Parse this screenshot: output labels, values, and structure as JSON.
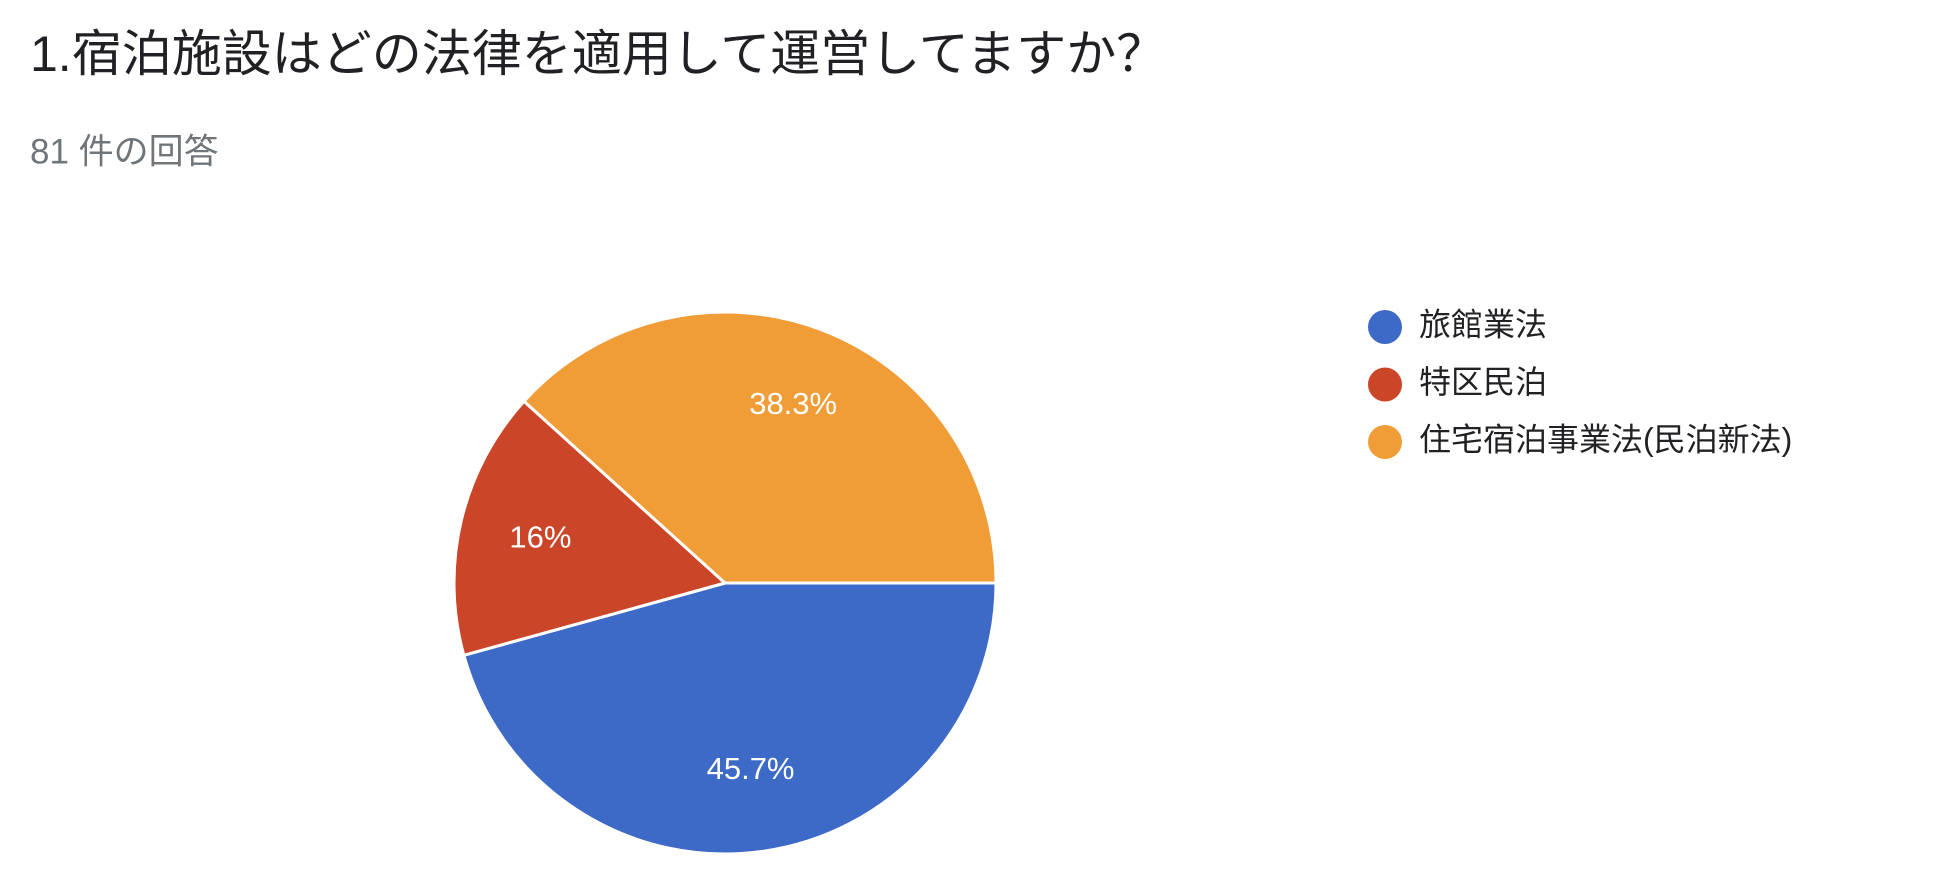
{
  "chart_data": {
    "type": "pie",
    "title": "1.宿泊施設はどの法律を適用して運営してますか？",
    "subtitle": "81 件の回答",
    "categories": [
      "旅館業法",
      "特区民泊",
      "住宅宿泊事業法(民泊新法)"
    ],
    "values": [
      45.7,
      16,
      38.3
    ],
    "value_labels": [
      "45.7%",
      "16%",
      "38.3%"
    ],
    "colors": [
      "#3d69c7",
      "#cb4528",
      "#f09c37"
    ]
  }
}
